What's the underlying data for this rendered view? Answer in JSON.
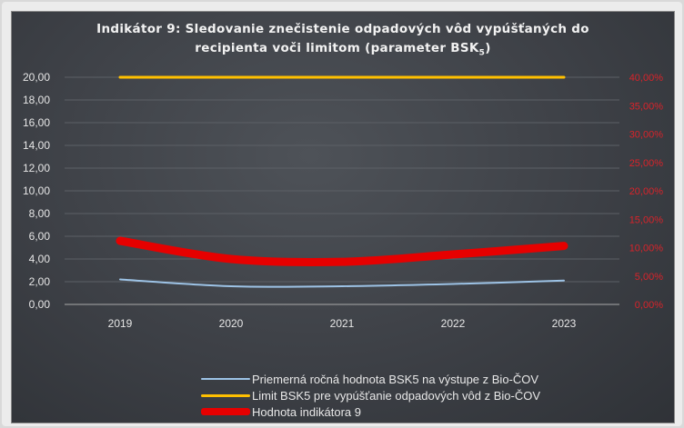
{
  "chart_data": {
    "type": "line",
    "title_line1": "Indikátor 9: Sledovanie znečistenie odpadových vôd vypúšťaných do",
    "title_line2_main": "recipienta voči limitom (parameter BSK",
    "title_line2_sub": "5",
    "title_line2_end": ")",
    "categories": [
      "2019",
      "2020",
      "2021",
      "2022",
      "2023"
    ],
    "y_left": {
      "ylim": [
        0,
        20
      ],
      "ticks": [
        "0,00",
        "2,00",
        "4,00",
        "6,00",
        "8,00",
        "10,00",
        "12,00",
        "14,00",
        "16,00",
        "18,00",
        "20,00"
      ]
    },
    "y_right": {
      "ylim": [
        0,
        40
      ],
      "ticks": [
        "0,00%",
        "5,00%",
        "10,00%",
        "15,00%",
        "20,00%",
        "25,00%",
        "30,00%",
        "35,00%",
        "40,00%"
      ]
    },
    "grid": true,
    "legend_position": "bottom",
    "series": [
      {
        "name": "Priemerná ročná hodnota BSK5 na výstupe z Bio-ČOV",
        "axis": "left",
        "color": "#9dc3e6",
        "values": [
          2.2,
          1.6,
          1.6,
          1.8,
          2.1
        ]
      },
      {
        "name": "Limit BSK5 pre vypúšťanie odpadových vôd z Bio-ČOV",
        "axis": "left",
        "color": "#ffc000",
        "values": [
          20,
          20,
          20,
          20,
          20
        ]
      },
      {
        "name": "Hodnota indikátora 9",
        "axis": "right",
        "color": "#e60000",
        "values": [
          11.2,
          8.0,
          7.5,
          8.8,
          10.3
        ]
      }
    ]
  }
}
